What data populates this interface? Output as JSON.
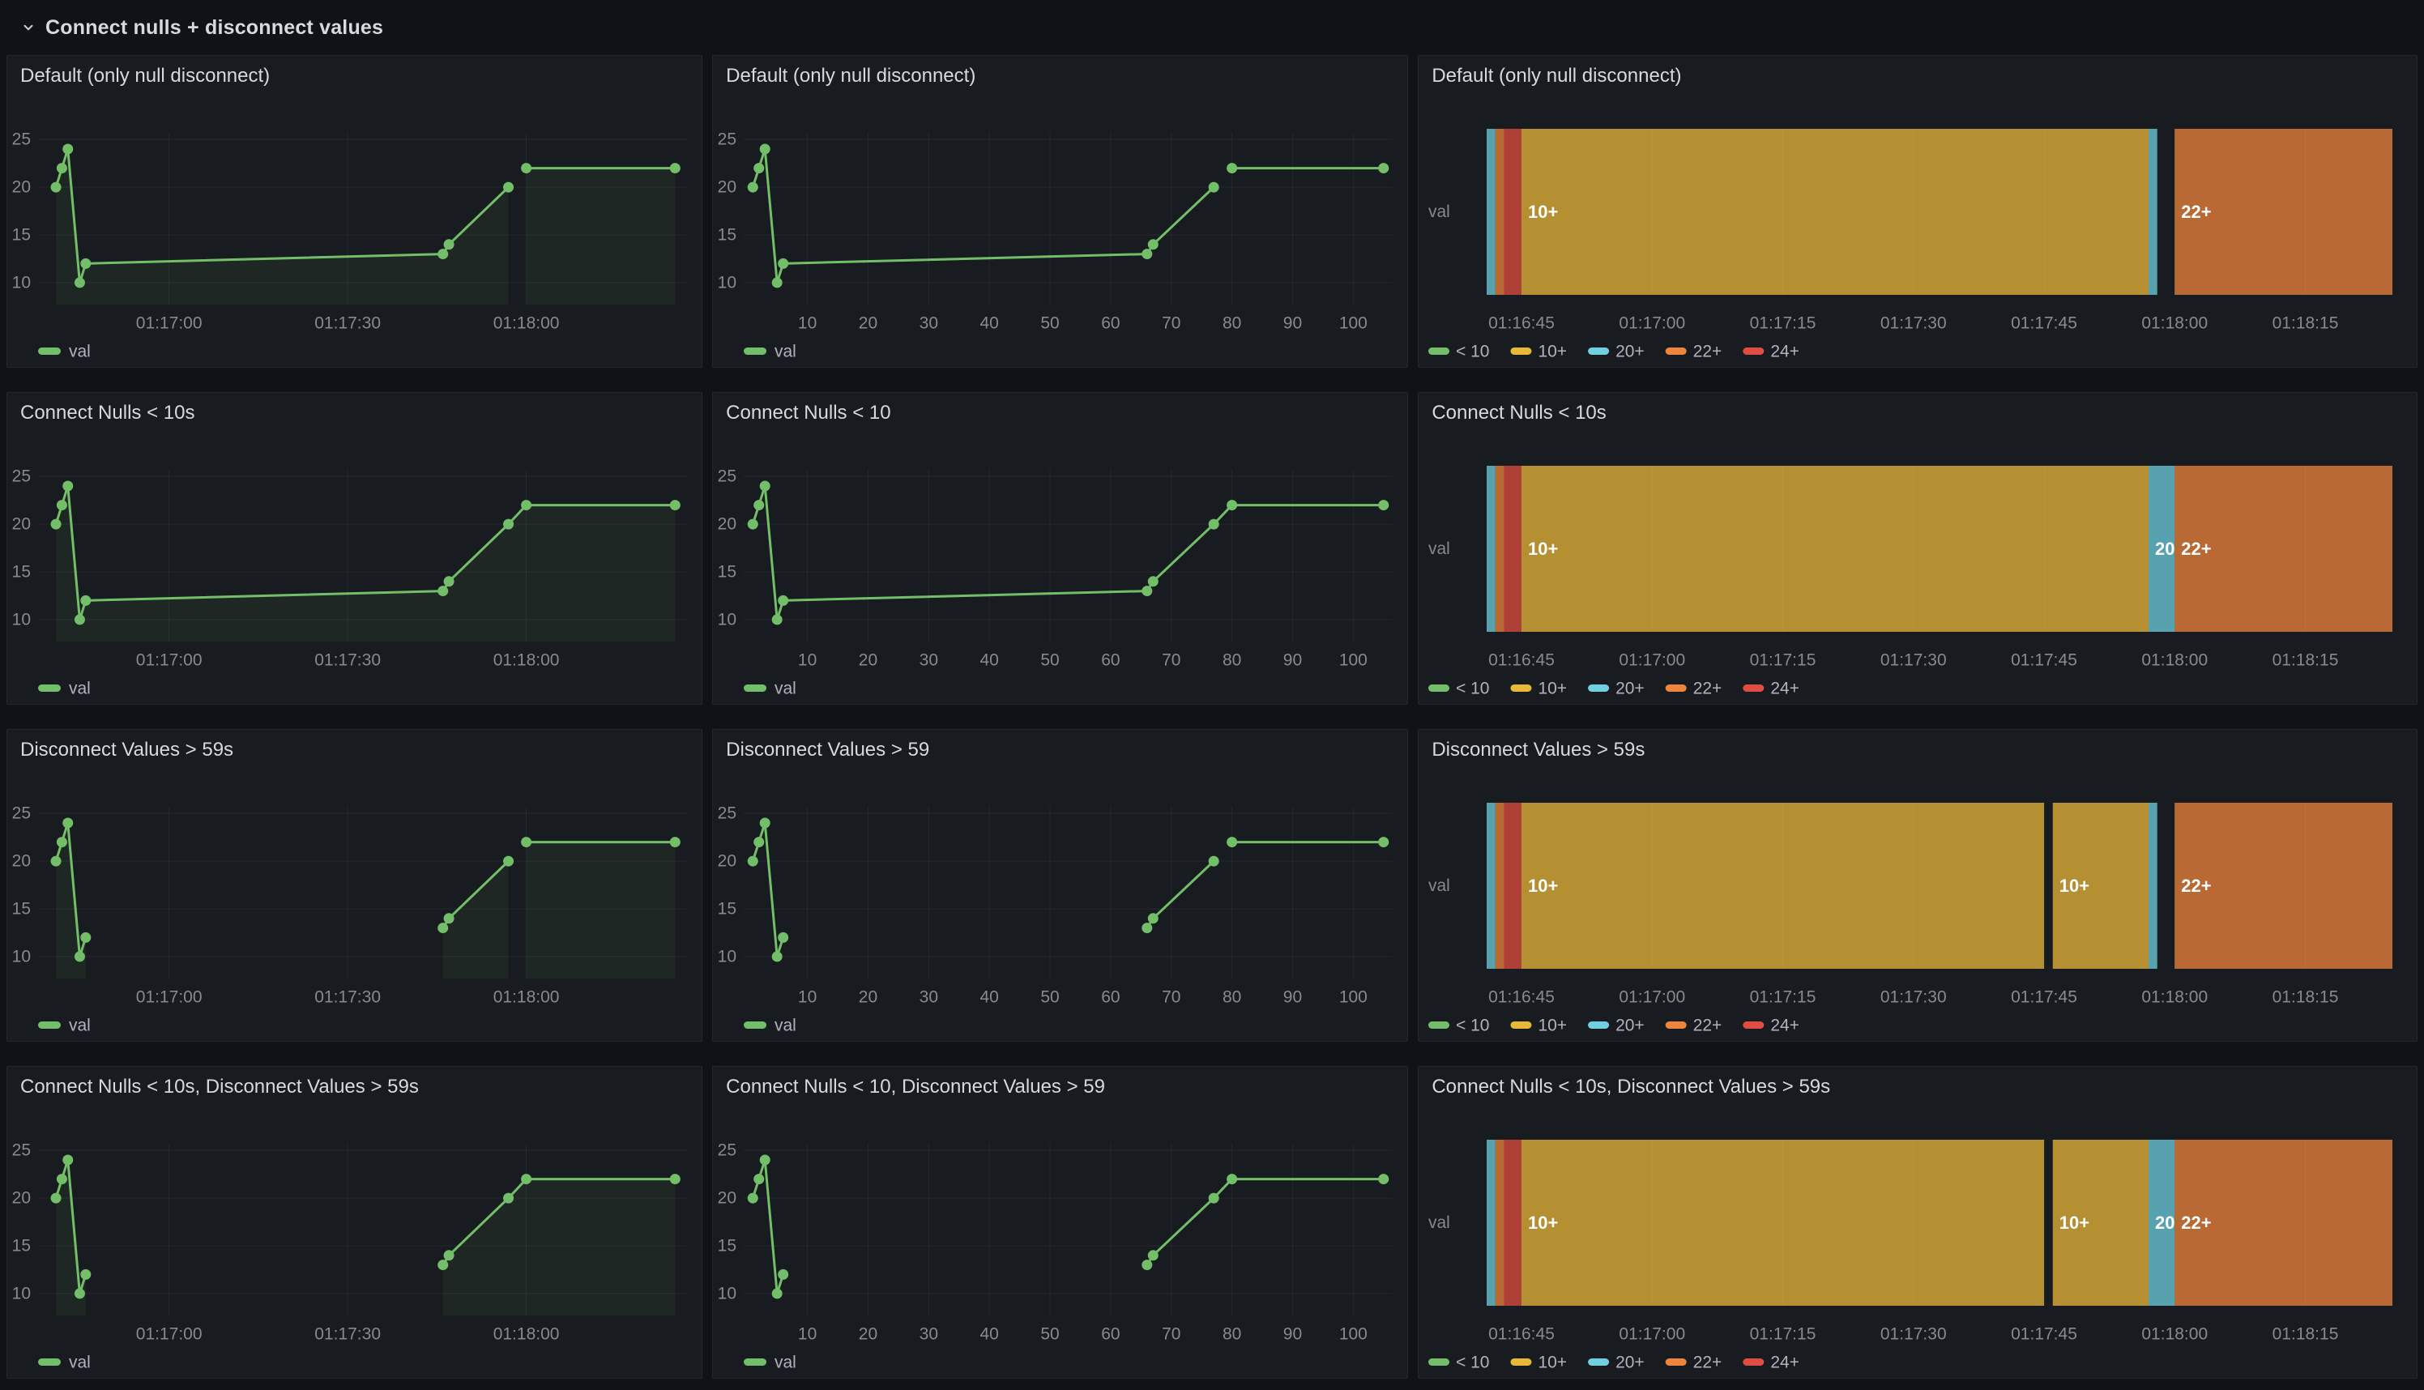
{
  "row": {
    "title": "Connect nulls + disconnect values"
  },
  "theme": {
    "page_bg": "#111217",
    "panel_bg": "#181b1f",
    "panel_border": "rgba(204,204,220,0.07)",
    "title_text": "#d8d9da",
    "tick_text": "rgba(204,204,220,0.62)",
    "legend_text": "rgba(204,204,220,0.85)",
    "grid_line": "rgba(204,204,220,0.07)",
    "timeline_grid_line": "rgba(204,204,220,0.10)",
    "bar_label_text": "#ffffff",
    "series_fill": "rgba(115,191,105,0.08)",
    "bar_fill_opacity": 0.75
  },
  "series": {
    "name": "val",
    "color": "#73BF69"
  },
  "value_buckets": [
    {
      "label": "< 10",
      "color": "#73BF69"
    },
    {
      "label": "10+",
      "color": "#EAB839"
    },
    {
      "label": "20+",
      "color": "#6ED0E0"
    },
    {
      "label": "22+",
      "color": "#EF843C"
    },
    {
      "label": "24+",
      "color": "#E24D42"
    }
  ],
  "shared": {
    "y_ticks": [
      10,
      15,
      20,
      25
    ],
    "y_domain": [
      7.7,
      25.7
    ],
    "points": [
      [
        1,
        20
      ],
      [
        2,
        22
      ],
      [
        3,
        24
      ],
      [
        5,
        10
      ],
      [
        6,
        12
      ],
      [
        66,
        13
      ],
      [
        67,
        14
      ],
      [
        77,
        20
      ],
      [
        80,
        22
      ],
      [
        105,
        22
      ]
    ],
    "line_time_ticks": [
      {
        "v": 20,
        "label": "01:17:00"
      },
      {
        "v": 50,
        "label": "01:17:30"
      },
      {
        "v": 80,
        "label": "01:18:00"
      }
    ],
    "line_numeric_ticks": [
      {
        "v": 10,
        "label": "10"
      },
      {
        "v": 20,
        "label": "20"
      },
      {
        "v": 30,
        "label": "30"
      },
      {
        "v": 40,
        "label": "40"
      },
      {
        "v": 50,
        "label": "50"
      },
      {
        "v": 60,
        "label": "60"
      },
      {
        "v": 70,
        "label": "70"
      },
      {
        "v": 80,
        "label": "80"
      },
      {
        "v": 90,
        "label": "90"
      },
      {
        "v": 100,
        "label": "100"
      }
    ],
    "timeline_ticks": [
      {
        "v": 5,
        "label": "01:16:45"
      },
      {
        "v": 20,
        "label": "01:17:00"
      },
      {
        "v": 35,
        "label": "01:17:15"
      },
      {
        "v": 50,
        "label": "01:17:30"
      },
      {
        "v": 65,
        "label": "01:17:45"
      },
      {
        "v": 80,
        "label": "01:18:00"
      },
      {
        "v": 95,
        "label": "01:18:15"
      }
    ],
    "seg_default": [
      [
        [
          1,
          20
        ],
        [
          2,
          22
        ],
        [
          3,
          24
        ],
        [
          5,
          10
        ],
        [
          6,
          12
        ],
        [
          66,
          13
        ],
        [
          67,
          14
        ],
        [
          77,
          20
        ]
      ],
      [
        [
          80,
          22
        ],
        [
          105,
          22
        ]
      ]
    ],
    "seg_connected": [
      [
        [
          1,
          20
        ],
        [
          2,
          22
        ],
        [
          3,
          24
        ],
        [
          5,
          10
        ],
        [
          6,
          12
        ],
        [
          66,
          13
        ],
        [
          67,
          14
        ],
        [
          77,
          20
        ],
        [
          80,
          22
        ],
        [
          105,
          22
        ]
      ]
    ],
    "seg_disconnect": [
      [
        [
          1,
          20
        ],
        [
          2,
          22
        ],
        [
          3,
          24
        ],
        [
          5,
          10
        ],
        [
          6,
          12
        ]
      ],
      [
        [
          66,
          13
        ],
        [
          67,
          14
        ],
        [
          77,
          20
        ]
      ],
      [
        [
          80,
          22
        ],
        [
          105,
          22
        ]
      ]
    ],
    "seg_both": [
      [
        [
          1,
          20
        ],
        [
          2,
          22
        ],
        [
          3,
          24
        ],
        [
          5,
          10
        ],
        [
          6,
          12
        ]
      ],
      [
        [
          66,
          13
        ],
        [
          67,
          14
        ],
        [
          77,
          20
        ],
        [
          80,
          22
        ],
        [
          105,
          22
        ]
      ]
    ]
  },
  "panels": [
    {
      "title": "Default (only null disconnect)",
      "chart_data": {
        "type": "line",
        "x_axis": "time",
        "fill": true,
        "x_domain": [
          -2,
          107
        ],
        "ticks": "line_time_ticks",
        "segments": "seg_default"
      }
    },
    {
      "title": "Default (only null disconnect)",
      "chart_data": {
        "type": "line",
        "x_axis": "numeric",
        "fill": false,
        "x_domain": [
          -0.5,
          106.5
        ],
        "ticks": "line_numeric_ticks",
        "segments": "seg_default"
      }
    },
    {
      "title": "Default (only null disconnect)",
      "chart_data": {
        "type": "timeline",
        "row_label": "val",
        "x_domain": [
          1,
          105
        ],
        "ticks": "timeline_ticks",
        "bars": [
          {
            "from": 1,
            "to": 2,
            "bucket": "20+",
            "label": ""
          },
          {
            "from": 2,
            "to": 3,
            "bucket": "22+",
            "label": ""
          },
          {
            "from": 3,
            "to": 5,
            "bucket": "24+",
            "label": ""
          },
          {
            "from": 5,
            "to": 77,
            "bucket": "10+",
            "label": "10+"
          },
          {
            "from": 77,
            "to": 78,
            "bucket": "20+",
            "label": ""
          },
          {
            "from": 80,
            "to": 105,
            "bucket": "22+",
            "label": "22+"
          }
        ]
      }
    },
    {
      "title": "Connect Nulls < 10s",
      "chart_data": {
        "type": "line",
        "x_axis": "time",
        "fill": true,
        "x_domain": [
          -2,
          107
        ],
        "ticks": "line_time_ticks",
        "segments": "seg_connected"
      }
    },
    {
      "title": "Connect Nulls < 10",
      "chart_data": {
        "type": "line",
        "x_axis": "numeric",
        "fill": false,
        "x_domain": [
          -0.5,
          106.5
        ],
        "ticks": "line_numeric_ticks",
        "segments": "seg_connected"
      }
    },
    {
      "title": "Connect Nulls < 10s",
      "chart_data": {
        "type": "timeline",
        "row_label": "val",
        "x_domain": [
          1,
          105
        ],
        "ticks": "timeline_ticks",
        "bars": [
          {
            "from": 1,
            "to": 2,
            "bucket": "20+",
            "label": ""
          },
          {
            "from": 2,
            "to": 3,
            "bucket": "22+",
            "label": ""
          },
          {
            "from": 3,
            "to": 5,
            "bucket": "24+",
            "label": ""
          },
          {
            "from": 5,
            "to": 77,
            "bucket": "10+",
            "label": "10+"
          },
          {
            "from": 77,
            "to": 80,
            "bucket": "20+",
            "label": "20"
          },
          {
            "from": 80,
            "to": 105,
            "bucket": "22+",
            "label": "22+"
          }
        ]
      }
    },
    {
      "title": "Disconnect Values > 59s",
      "chart_data": {
        "type": "line",
        "x_axis": "time",
        "fill": true,
        "x_domain": [
          -2,
          107
        ],
        "ticks": "line_time_ticks",
        "segments": "seg_disconnect"
      }
    },
    {
      "title": "Disconnect Values > 59",
      "chart_data": {
        "type": "line",
        "x_axis": "numeric",
        "fill": false,
        "x_domain": [
          -0.5,
          106.5
        ],
        "ticks": "line_numeric_ticks",
        "segments": "seg_disconnect"
      }
    },
    {
      "title": "Disconnect Values > 59s",
      "chart_data": {
        "type": "timeline",
        "row_label": "val",
        "x_domain": [
          1,
          105
        ],
        "ticks": "timeline_ticks",
        "bars": [
          {
            "from": 1,
            "to": 2,
            "bucket": "20+",
            "label": ""
          },
          {
            "from": 2,
            "to": 3,
            "bucket": "22+",
            "label": ""
          },
          {
            "from": 3,
            "to": 5,
            "bucket": "24+",
            "label": ""
          },
          {
            "from": 5,
            "to": 65,
            "bucket": "10+",
            "label": "10+"
          },
          {
            "from": 66,
            "to": 77,
            "bucket": "10+",
            "label": "10+"
          },
          {
            "from": 77,
            "to": 78,
            "bucket": "20+",
            "label": ""
          },
          {
            "from": 80,
            "to": 105,
            "bucket": "22+",
            "label": "22+"
          }
        ]
      }
    },
    {
      "title": "Connect Nulls < 10s, Disconnect Values > 59s",
      "chart_data": {
        "type": "line",
        "x_axis": "time",
        "fill": true,
        "x_domain": [
          -2,
          107
        ],
        "ticks": "line_time_ticks",
        "segments": "seg_both"
      }
    },
    {
      "title": "Connect Nulls < 10, Disconnect Values > 59",
      "chart_data": {
        "type": "line",
        "x_axis": "numeric",
        "fill": false,
        "x_domain": [
          -0.5,
          106.5
        ],
        "ticks": "line_numeric_ticks",
        "segments": "seg_both"
      }
    },
    {
      "title": "Connect Nulls < 10s, Disconnect Values > 59s",
      "chart_data": {
        "type": "timeline",
        "row_label": "val",
        "x_domain": [
          1,
          105
        ],
        "ticks": "timeline_ticks",
        "bars": [
          {
            "from": 1,
            "to": 2,
            "bucket": "20+",
            "label": ""
          },
          {
            "from": 2,
            "to": 3,
            "bucket": "22+",
            "label": ""
          },
          {
            "from": 3,
            "to": 5,
            "bucket": "24+",
            "label": ""
          },
          {
            "from": 5,
            "to": 65,
            "bucket": "10+",
            "label": "10+"
          },
          {
            "from": 66,
            "to": 77,
            "bucket": "10+",
            "label": "10+"
          },
          {
            "from": 77,
            "to": 80,
            "bucket": "20+",
            "label": "20"
          },
          {
            "from": 80,
            "to": 105,
            "bucket": "22+",
            "label": "22+"
          }
        ]
      }
    }
  ]
}
